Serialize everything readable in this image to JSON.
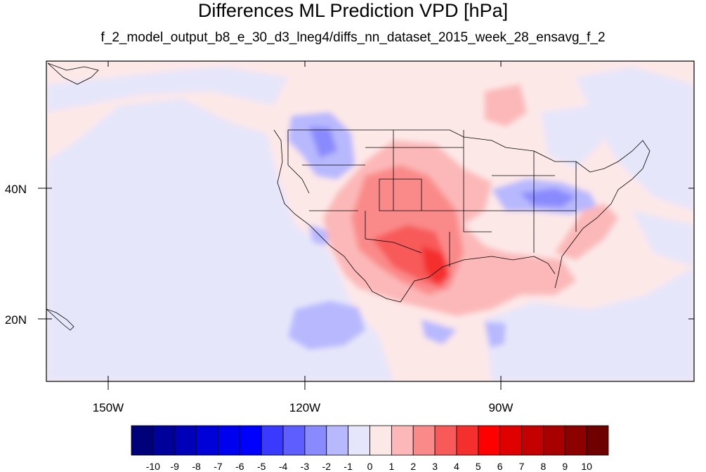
{
  "title": "Differences ML Prediction VPD [hPa]",
  "subtitle": "f_2_model_output_b8_e_30_d3_lneg4/diffs_nn_dataset_2015_week_28_ensavg_f_2",
  "map": {
    "x_ticks": [
      "150W",
      "120W",
      "90W"
    ],
    "y_ticks": [
      "40N",
      "20N"
    ]
  },
  "colorbar": {
    "labels": [
      "-10",
      "-9",
      "-8",
      "-7",
      "-6",
      "-5",
      "-4",
      "-3",
      "-2",
      "-1",
      "0",
      "1",
      "2",
      "3",
      "4",
      "5",
      "6",
      "7",
      "8",
      "9",
      "10"
    ],
    "colors": [
      "#00007a",
      "#00009a",
      "#0000b8",
      "#0000d8",
      "#0000f0",
      "#0000ff",
      "#3a3aff",
      "#5e5eff",
      "#8a8aff",
      "#b8b8ff",
      "#e6e6fa",
      "#fde8e8",
      "#fcb8b8",
      "#fa8a8a",
      "#f85a5a",
      "#f52e2e",
      "#ff0000",
      "#e00000",
      "#c40000",
      "#a80000",
      "#8c0000",
      "#6e0000"
    ]
  }
}
